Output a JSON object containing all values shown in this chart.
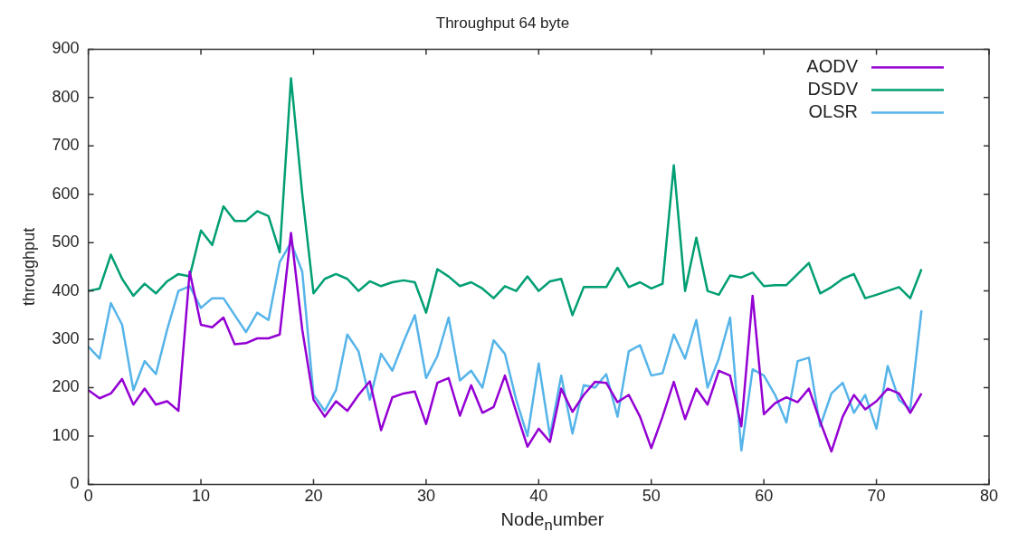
{
  "chart_data": {
    "type": "line",
    "title": "Throughput 64 byte",
    "xlabel": "Node$_{n}$umber",
    "ylabel": "throughput",
    "legend": "top right",
    "grid": false,
    "marker": "none",
    "line_style": "solid",
    "x": [
      0,
      1,
      2,
      3,
      4,
      5,
      6,
      7,
      8,
      9,
      10,
      11,
      12,
      13,
      14,
      15,
      16,
      17,
      18,
      19,
      20,
      21,
      22,
      23,
      24,
      25,
      26,
      27,
      28,
      29,
      30,
      31,
      32,
      33,
      34,
      35,
      36,
      37,
      38,
      39,
      40,
      41,
      42,
      43,
      44,
      45,
      46,
      47,
      48,
      49,
      50,
      51,
      52,
      53,
      54,
      55,
      56,
      57,
      58,
      59,
      60,
      61,
      62,
      63,
      64,
      65,
      66,
      67,
      68,
      69,
      70,
      71,
      72,
      73,
      74
    ],
    "xlim": [
      0,
      80
    ],
    "xticks": [
      0,
      10,
      20,
      30,
      40,
      50,
      60,
      70,
      80
    ],
    "ylim": [
      0,
      900
    ],
    "yticks": [
      0,
      100,
      200,
      300,
      400,
      500,
      600,
      700,
      800,
      900
    ],
    "series": [
      {
        "name": "AODV",
        "color": "#9400d3",
        "values": [
          195,
          178,
          188,
          218,
          165,
          198,
          165,
          172,
          152,
          440,
          330,
          325,
          345,
          290,
          292,
          302,
          302,
          310,
          520,
          320,
          175,
          140,
          172,
          152,
          185,
          213,
          112,
          180,
          188,
          192,
          125,
          210,
          220,
          142,
          205,
          148,
          160,
          225,
          150,
          78,
          115,
          88,
          198,
          150,
          185,
          212,
          210,
          170,
          185,
          140,
          75,
          140,
          212,
          135,
          198,
          165,
          235,
          225,
          120,
          390,
          145,
          168,
          180,
          170,
          198,
          130,
          68,
          140,
          185,
          155,
          172,
          198,
          188,
          148,
          188
        ]
      },
      {
        "name": "DSDV",
        "color": "#009e73",
        "values": [
          400,
          405,
          475,
          425,
          390,
          415,
          395,
          420,
          435,
          430,
          525,
          495,
          575,
          545,
          545,
          565,
          555,
          480,
          840,
          600,
          395,
          425,
          435,
          425,
          400,
          420,
          410,
          418,
          422,
          418,
          355,
          445,
          430,
          410,
          418,
          405,
          385,
          410,
          400,
          430,
          400,
          420,
          425,
          350,
          408,
          408,
          408,
          448,
          408,
          418,
          405,
          415,
          660,
          400,
          510,
          400,
          392,
          432,
          428,
          438,
          410,
          412,
          412,
          435,
          458,
          395,
          408,
          425,
          435,
          385,
          392,
          400,
          408,
          385,
          445
        ]
      },
      {
        "name": "OLSR",
        "color": "#56b4e9",
        "values": [
          285,
          260,
          375,
          330,
          195,
          255,
          228,
          320,
          400,
          410,
          365,
          385,
          385,
          350,
          315,
          355,
          340,
          460,
          500,
          440,
          185,
          152,
          195,
          310,
          275,
          175,
          270,
          235,
          295,
          350,
          220,
          265,
          345,
          215,
          235,
          200,
          298,
          270,
          175,
          100,
          250,
          100,
          225,
          105,
          205,
          200,
          228,
          140,
          275,
          288,
          225,
          230,
          310,
          260,
          340,
          200,
          260,
          345,
          70,
          238,
          225,
          185,
          128,
          255,
          262,
          120,
          188,
          210,
          148,
          185,
          115,
          245,
          175,
          155,
          360
        ]
      }
    ]
  }
}
